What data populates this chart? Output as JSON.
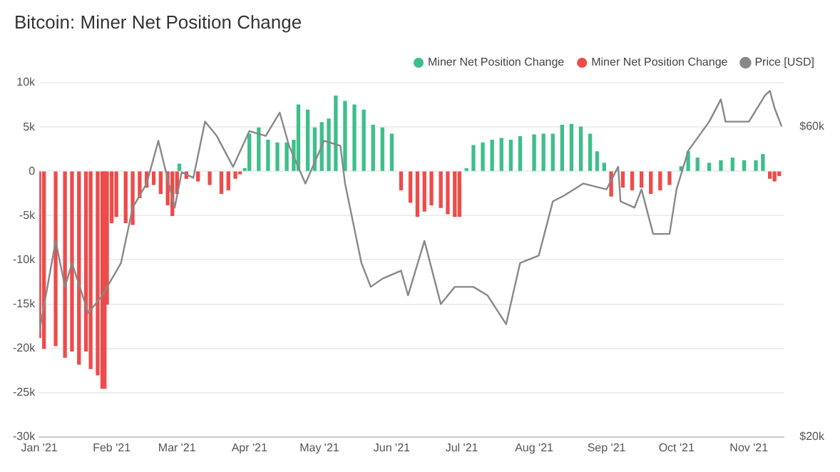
{
  "chart_data": {
    "type": "bar",
    "title": "Bitcoin: Miner Net Position Change",
    "x": [
      "2021-01-01",
      "2021-01-03",
      "2021-01-08",
      "2021-01-12",
      "2021-01-15",
      "2021-01-18",
      "2021-01-21",
      "2021-01-23",
      "2021-01-26",
      "2021-01-28",
      "2021-01-29",
      "2021-01-30",
      "2021-02-01",
      "2021-02-03",
      "2021-02-07",
      "2021-02-10",
      "2021-02-13",
      "2021-02-16",
      "2021-02-19",
      "2021-02-22",
      "2021-02-25",
      "2021-02-27",
      "2021-03-01",
      "2021-03-02",
      "2021-03-05",
      "2021-03-10",
      "2021-03-15",
      "2021-03-20",
      "2021-03-23",
      "2021-03-26",
      "2021-03-28",
      "2021-03-30",
      "2021-04-01",
      "2021-04-05",
      "2021-04-09",
      "2021-04-13",
      "2021-04-17",
      "2021-04-20",
      "2021-04-22",
      "2021-04-26",
      "2021-04-29",
      "2021-05-02",
      "2021-05-05",
      "2021-05-08",
      "2021-05-12",
      "2021-05-16",
      "2021-05-20",
      "2021-05-24",
      "2021-05-28",
      "2021-06-01",
      "2021-06-05",
      "2021-06-09",
      "2021-06-12",
      "2021-06-15",
      "2021-06-18",
      "2021-06-22",
      "2021-06-25",
      "2021-06-28",
      "2021-06-30",
      "2021-07-03",
      "2021-07-06",
      "2021-07-10",
      "2021-07-14",
      "2021-07-18",
      "2021-07-22",
      "2021-07-26",
      "2021-08-01",
      "2021-08-05",
      "2021-08-09",
      "2021-08-13",
      "2021-08-17",
      "2021-08-21",
      "2021-08-25",
      "2021-08-28",
      "2021-08-31",
      "2021-09-03",
      "2021-09-08",
      "2021-09-12",
      "2021-09-16",
      "2021-09-20",
      "2021-09-24",
      "2021-09-28",
      "2021-10-03",
      "2021-10-06",
      "2021-10-10",
      "2021-10-15",
      "2021-10-20",
      "2021-10-25",
      "2021-10-30",
      "2021-11-04",
      "2021-11-07",
      "2021-11-10",
      "2021-11-12",
      "2021-11-14"
    ],
    "series": [
      {
        "name": "Miner Net Position Change",
        "color": "#3dbf8a",
        "values": [
          null,
          null,
          null,
          null,
          null,
          null,
          null,
          null,
          null,
          null,
          null,
          null,
          null,
          null,
          null,
          null,
          null,
          null,
          null,
          null,
          null,
          null,
          null,
          800,
          null,
          null,
          null,
          null,
          null,
          null,
          null,
          300,
          4200,
          4900,
          3500,
          3200,
          3200,
          3500,
          7500,
          6900,
          4900,
          5500,
          5900,
          8500,
          7900,
          7500,
          6900,
          5200,
          4900,
          4200,
          null,
          null,
          null,
          null,
          null,
          null,
          null,
          null,
          null,
          300,
          2900,
          3200,
          3500,
          3700,
          3500,
          3900,
          4100,
          4200,
          4200,
          5200,
          5300,
          5000,
          4200,
          2200,
          900,
          null,
          null,
          null,
          null,
          null,
          null,
          null,
          500,
          2200,
          1500,
          900,
          1200,
          1500,
          1200,
          1200,
          1900,
          null,
          null,
          null
        ]
      },
      {
        "name": "Miner Net Position Change",
        "color": "#ee4b4b",
        "values": [
          -18800,
          -20000,
          -19700,
          -21000,
          -20300,
          -21800,
          -20300,
          -22300,
          -23000,
          -24500,
          -24500,
          -15000,
          -5800,
          -5100,
          -5800,
          -6000,
          -3000,
          -1800,
          -1500,
          -2500,
          -3800,
          -5000,
          -2500,
          null,
          -800,
          -1100,
          -1500,
          -2500,
          -2100,
          -800,
          -300,
          null,
          null,
          null,
          null,
          null,
          null,
          null,
          null,
          null,
          null,
          null,
          null,
          null,
          null,
          null,
          null,
          null,
          null,
          null,
          -2100,
          -3500,
          -5100,
          -4500,
          -3800,
          -4100,
          -4800,
          -5100,
          -5100,
          null,
          null,
          null,
          null,
          null,
          null,
          null,
          null,
          null,
          null,
          null,
          null,
          null,
          null,
          null,
          null,
          -2800,
          -1800,
          -2100,
          -1800,
          -2500,
          -2100,
          -1500,
          null,
          null,
          null,
          null,
          null,
          null,
          null,
          null,
          null,
          -800,
          -1100,
          -500
        ]
      },
      {
        "name": "Price [USD]",
        "type": "line",
        "axis": "y2",
        "color": "#888888",
        "x": [
          "2021-01-01",
          "2021-01-08",
          "2021-01-12",
          "2021-01-15",
          "2021-01-22",
          "2021-01-28",
          "2021-02-05",
          "2021-02-10",
          "2021-02-16",
          "2021-02-21",
          "2021-02-28",
          "2021-03-03",
          "2021-03-08",
          "2021-03-13",
          "2021-03-18",
          "2021-03-25",
          "2021-04-01",
          "2021-04-08",
          "2021-04-14",
          "2021-04-18",
          "2021-04-25",
          "2021-05-03",
          "2021-05-10",
          "2021-05-12",
          "2021-05-19",
          "2021-05-23",
          "2021-05-28",
          "2021-06-05",
          "2021-06-08",
          "2021-06-15",
          "2021-06-22",
          "2021-06-28",
          "2021-07-06",
          "2021-07-12",
          "2021-07-20",
          "2021-07-26",
          "2021-08-03",
          "2021-08-09",
          "2021-08-14",
          "2021-08-22",
          "2021-09-01",
          "2021-09-06",
          "2021-09-07",
          "2021-09-13",
          "2021-09-16",
          "2021-09-21",
          "2021-09-28",
          "2021-10-01",
          "2021-10-06",
          "2021-10-15",
          "2021-10-20",
          "2021-10-22",
          "2021-10-28",
          "2021-11-01",
          "2021-11-08",
          "2021-11-10",
          "2021-11-12",
          "2021-11-15"
        ],
        "values": [
          29000,
          40000,
          34000,
          37000,
          31000,
          33000,
          37000,
          45000,
          49000,
          57000,
          45000,
          51000,
          50000,
          61000,
          58000,
          52000,
          59000,
          58000,
          63000,
          56000,
          49000,
          57000,
          56000,
          49000,
          37000,
          34000,
          35000,
          36000,
          33000,
          40000,
          32000,
          34000,
          34000,
          33000,
          29800,
          37000,
          38000,
          46000,
          47000,
          49000,
          48000,
          52000,
          46000,
          45000,
          48000,
          41000,
          41000,
          48000,
          55000,
          61000,
          66000,
          61000,
          61000,
          61000,
          67000,
          68000,
          64000,
          60000
        ]
      }
    ],
    "xlim": [
      "2021-01-01",
      "2021-11-16"
    ],
    "xticks": [
      {
        "value": "2021-01-01",
        "label": "Jan '21"
      },
      {
        "value": "2021-02-01",
        "label": "Feb '21"
      },
      {
        "value": "2021-03-01",
        "label": "Mar '21"
      },
      {
        "value": "2021-04-01",
        "label": "Apr '21"
      },
      {
        "value": "2021-05-01",
        "label": "May '21"
      },
      {
        "value": "2021-06-01",
        "label": "Jun '21"
      },
      {
        "value": "2021-07-01",
        "label": "Jul '21"
      },
      {
        "value": "2021-08-01",
        "label": "Aug '21"
      },
      {
        "value": "2021-09-01",
        "label": "Sep '21"
      },
      {
        "value": "2021-10-01",
        "label": "Oct '21"
      },
      {
        "value": "2021-11-01",
        "label": "Nov '21"
      }
    ],
    "ylim": [
      -30000,
      10000
    ],
    "yticks": [
      {
        "value": 10000,
        "label": "10k"
      },
      {
        "value": 5000,
        "label": "5k"
      },
      0,
      {
        "value": -5000,
        "label": "-5k"
      },
      {
        "value": -10000,
        "label": "-10k"
      },
      {
        "value": -15000,
        "label": "-15k"
      },
      {
        "value": -20000,
        "label": "-20k"
      },
      {
        "value": -25000,
        "label": "-25k"
      },
      {
        "value": -30000,
        "label": "-30k"
      }
    ],
    "y2lim": [
      20000,
      70000
    ],
    "y2ticks": [
      {
        "value": 20000,
        "label": "$20k"
      },
      {
        "value": 60000,
        "label": "$60k"
      }
    ],
    "log": "y2",
    "grid": "y",
    "legend": "top right"
  }
}
